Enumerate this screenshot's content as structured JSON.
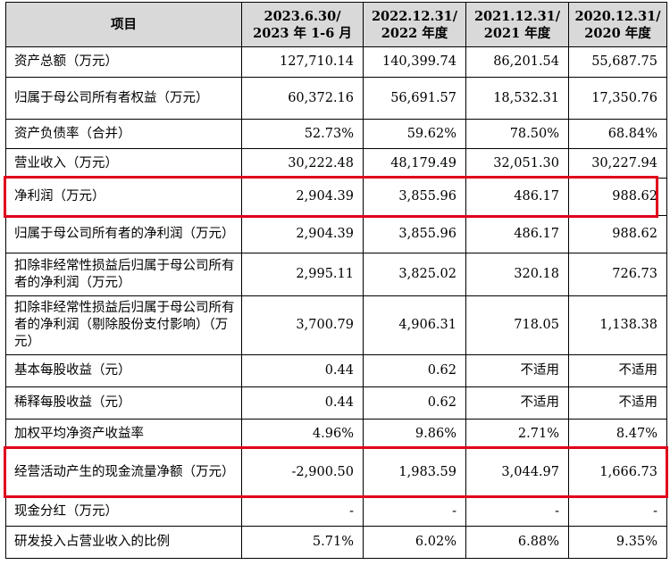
{
  "table": {
    "headers": [
      {
        "line1": "项目",
        "line2": ""
      },
      {
        "line1": "2023.6.30/",
        "line2": "2023 年 1-6 月"
      },
      {
        "line1": "2022.12.31/",
        "line2": "2022 年度"
      },
      {
        "line1": "2021.12.31/",
        "line2": "2021 年度"
      },
      {
        "line1": "2020.12.31/",
        "line2": "2020 年度"
      }
    ],
    "rows": [
      {
        "label": "资产总额（万元）",
        "values": [
          "127,710.14",
          "140,399.74",
          "86,201.54",
          "55,687.75"
        ]
      },
      {
        "label": "归属于母公司所有者权益（万元）",
        "values": [
          "60,372.16",
          "56,691.57",
          "18,532.31",
          "17,350.76"
        ]
      },
      {
        "label": "资产负债率（合并）",
        "values": [
          "52.73%",
          "59.62%",
          "78.50%",
          "68.84%"
        ]
      },
      {
        "label": "营业收入（万元）",
        "values": [
          "30,222.48",
          "48,179.49",
          "32,051.30",
          "30,227.94"
        ]
      },
      {
        "label": "净利润（万元）",
        "values": [
          "2,904.39",
          "3,855.96",
          "486.17",
          "988.62"
        ]
      },
      {
        "label": "归属于母公司所有者的净利润（万元）",
        "values": [
          "2,904.39",
          "3,855.96",
          "486.17",
          "988.62"
        ]
      },
      {
        "label": "扣除非经常性损益后归属于母公司所有者的净利润（万元）",
        "values": [
          "2,995.11",
          "3,825.02",
          "320.18",
          "726.73"
        ]
      },
      {
        "label": "扣除非经常性损益后归属于母公司所有者的净利润（剔除股份支付影响）（万元）",
        "values": [
          "3,700.79",
          "4,906.31",
          "718.05",
          "1,138.38"
        ]
      },
      {
        "label": "基本每股收益（元）",
        "values": [
          "0.44",
          "0.62",
          "不适用",
          "不适用"
        ]
      },
      {
        "label": "稀释每股收益（元）",
        "values": [
          "0.44",
          "0.62",
          "不适用",
          "不适用"
        ]
      },
      {
        "label": "加权平均净资产收益率",
        "values": [
          "4.96%",
          "9.86%",
          "2.71%",
          "8.47%"
        ]
      },
      {
        "label": "经营活动产生的现金流量净额（万元）",
        "values": [
          "-2,900.50",
          "1,983.59",
          "3,044.97",
          "1,666.73"
        ]
      },
      {
        "label": "现金分红（万元）",
        "values": [
          "-",
          "-",
          "-",
          "-"
        ]
      },
      {
        "label": "研发投入占营业收入的比例",
        "values": [
          "5.71%",
          "6.02%",
          "6.88%",
          "9.35%"
        ]
      }
    ]
  },
  "highlights": {
    "color": "#e0001b"
  }
}
